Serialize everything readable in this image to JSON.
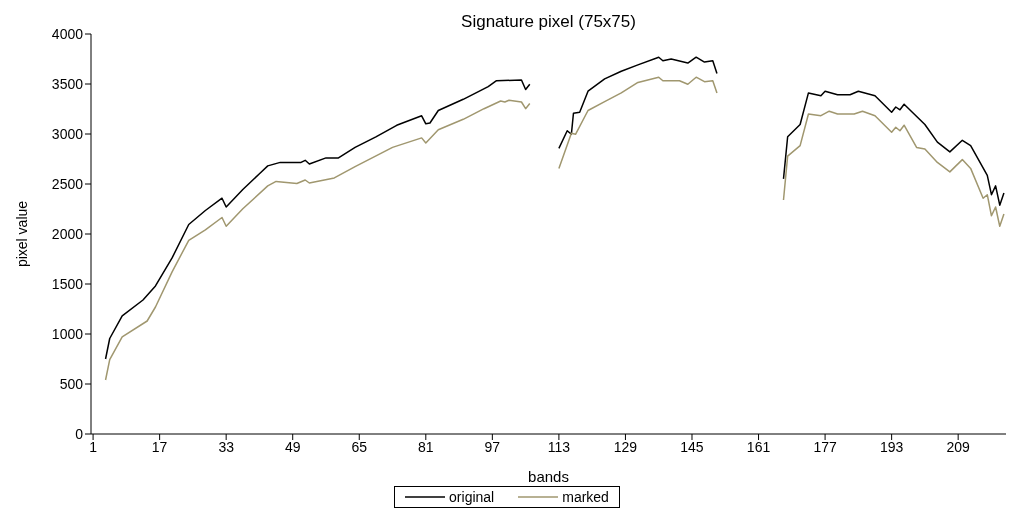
{
  "chart_data": {
    "type": "line",
    "title": "Signature pixel (75x75)",
    "xlabel": "bands",
    "ylabel": "pixel value",
    "xlim": [
      0.5,
      220.5
    ],
    "xticks": [
      1,
      17,
      33,
      49,
      65,
      81,
      97,
      113,
      129,
      145,
      161,
      177,
      193,
      209
    ],
    "ylim": [
      0,
      4000
    ],
    "yticks": [
      0,
      500,
      1000,
      1500,
      2000,
      2500,
      3000,
      3500,
      4000
    ],
    "legend": "bottom",
    "marker": "none",
    "line_style": "solid",
    "series": [
      {
        "name": "original",
        "color": "#000000",
        "x": [
          4,
          5,
          8,
          13,
          16,
          20,
          24,
          28,
          32,
          33,
          37,
          41,
          43,
          46,
          51,
          52,
          53,
          57,
          60,
          64,
          69,
          74,
          80,
          81,
          82,
          84,
          90,
          96,
          98,
          104,
          105,
          106,
          110,
          113,
          115,
          116,
          116.5,
          118,
          120,
          124,
          128,
          132,
          137,
          138,
          140,
          144,
          146,
          148,
          150,
          151,
          160,
          167,
          168,
          171,
          173,
          176,
          177,
          180,
          183,
          185,
          189,
          193,
          194,
          195,
          196,
          201,
          204,
          207,
          210,
          212,
          216,
          217,
          218,
          219,
          220
        ],
        "values": [
          750,
          955,
          1182,
          1340,
          1481,
          1761,
          2095,
          2235,
          2358,
          2270,
          2445,
          2603,
          2681,
          2716,
          2716,
          2737,
          2700,
          2761,
          2761,
          2866,
          2972,
          3087,
          3182,
          3102,
          3110,
          3235,
          3347,
          3474,
          3533,
          3540,
          3445,
          3498,
          null,
          2856,
          3032,
          2997,
          3208,
          3218,
          3428,
          3551,
          3628,
          3691,
          3768,
          3733,
          3751,
          3709,
          3768,
          3719,
          3733,
          3604,
          null,
          2551,
          2972,
          3095,
          3411,
          3382,
          3428,
          3393,
          3393,
          3428,
          3382,
          3218,
          3270,
          3242,
          3298,
          3095,
          2919,
          2821,
          2937,
          2884,
          2586,
          2393,
          2481,
          2288,
          2410
        ]
      },
      {
        "name": "marked",
        "color": "#a0976f",
        "x": [
          4,
          5,
          8,
          14,
          16,
          20,
          24,
          28,
          32,
          33,
          37,
          43,
          45,
          50,
          52,
          53,
          59,
          64,
          73,
          80,
          81,
          84,
          90,
          95,
          99,
          100,
          101,
          104,
          105,
          106,
          110,
          113,
          116,
          117,
          120,
          124,
          128,
          132,
          137,
          138,
          142,
          144,
          146,
          148,
          150,
          151,
          160,
          167,
          168,
          171,
          173,
          176,
          178,
          180,
          184,
          186,
          189,
          193,
          194,
          195,
          196,
          199,
          201,
          204,
          207,
          210,
          212,
          215,
          216,
          217,
          218,
          219,
          220
        ],
        "values": [
          540,
          744,
          972,
          1130,
          1270,
          1621,
          1937,
          2042,
          2165,
          2077,
          2253,
          2481,
          2526,
          2505,
          2540,
          2510,
          2561,
          2674,
          2866,
          2961,
          2910,
          3042,
          3147,
          3253,
          3330,
          3320,
          3337,
          3320,
          3253,
          3305,
          null,
          2656,
          3007,
          2997,
          3235,
          3323,
          3411,
          3516,
          3568,
          3533,
          3533,
          3498,
          3568,
          3523,
          3533,
          3411,
          null,
          2340,
          2779,
          2884,
          3200,
          3183,
          3228,
          3200,
          3200,
          3228,
          3183,
          3018,
          3067,
          3032,
          3088,
          2866,
          2849,
          2716,
          2621,
          2744,
          2656,
          2358,
          2393,
          2182,
          2270,
          2077,
          2200
        ]
      }
    ]
  }
}
